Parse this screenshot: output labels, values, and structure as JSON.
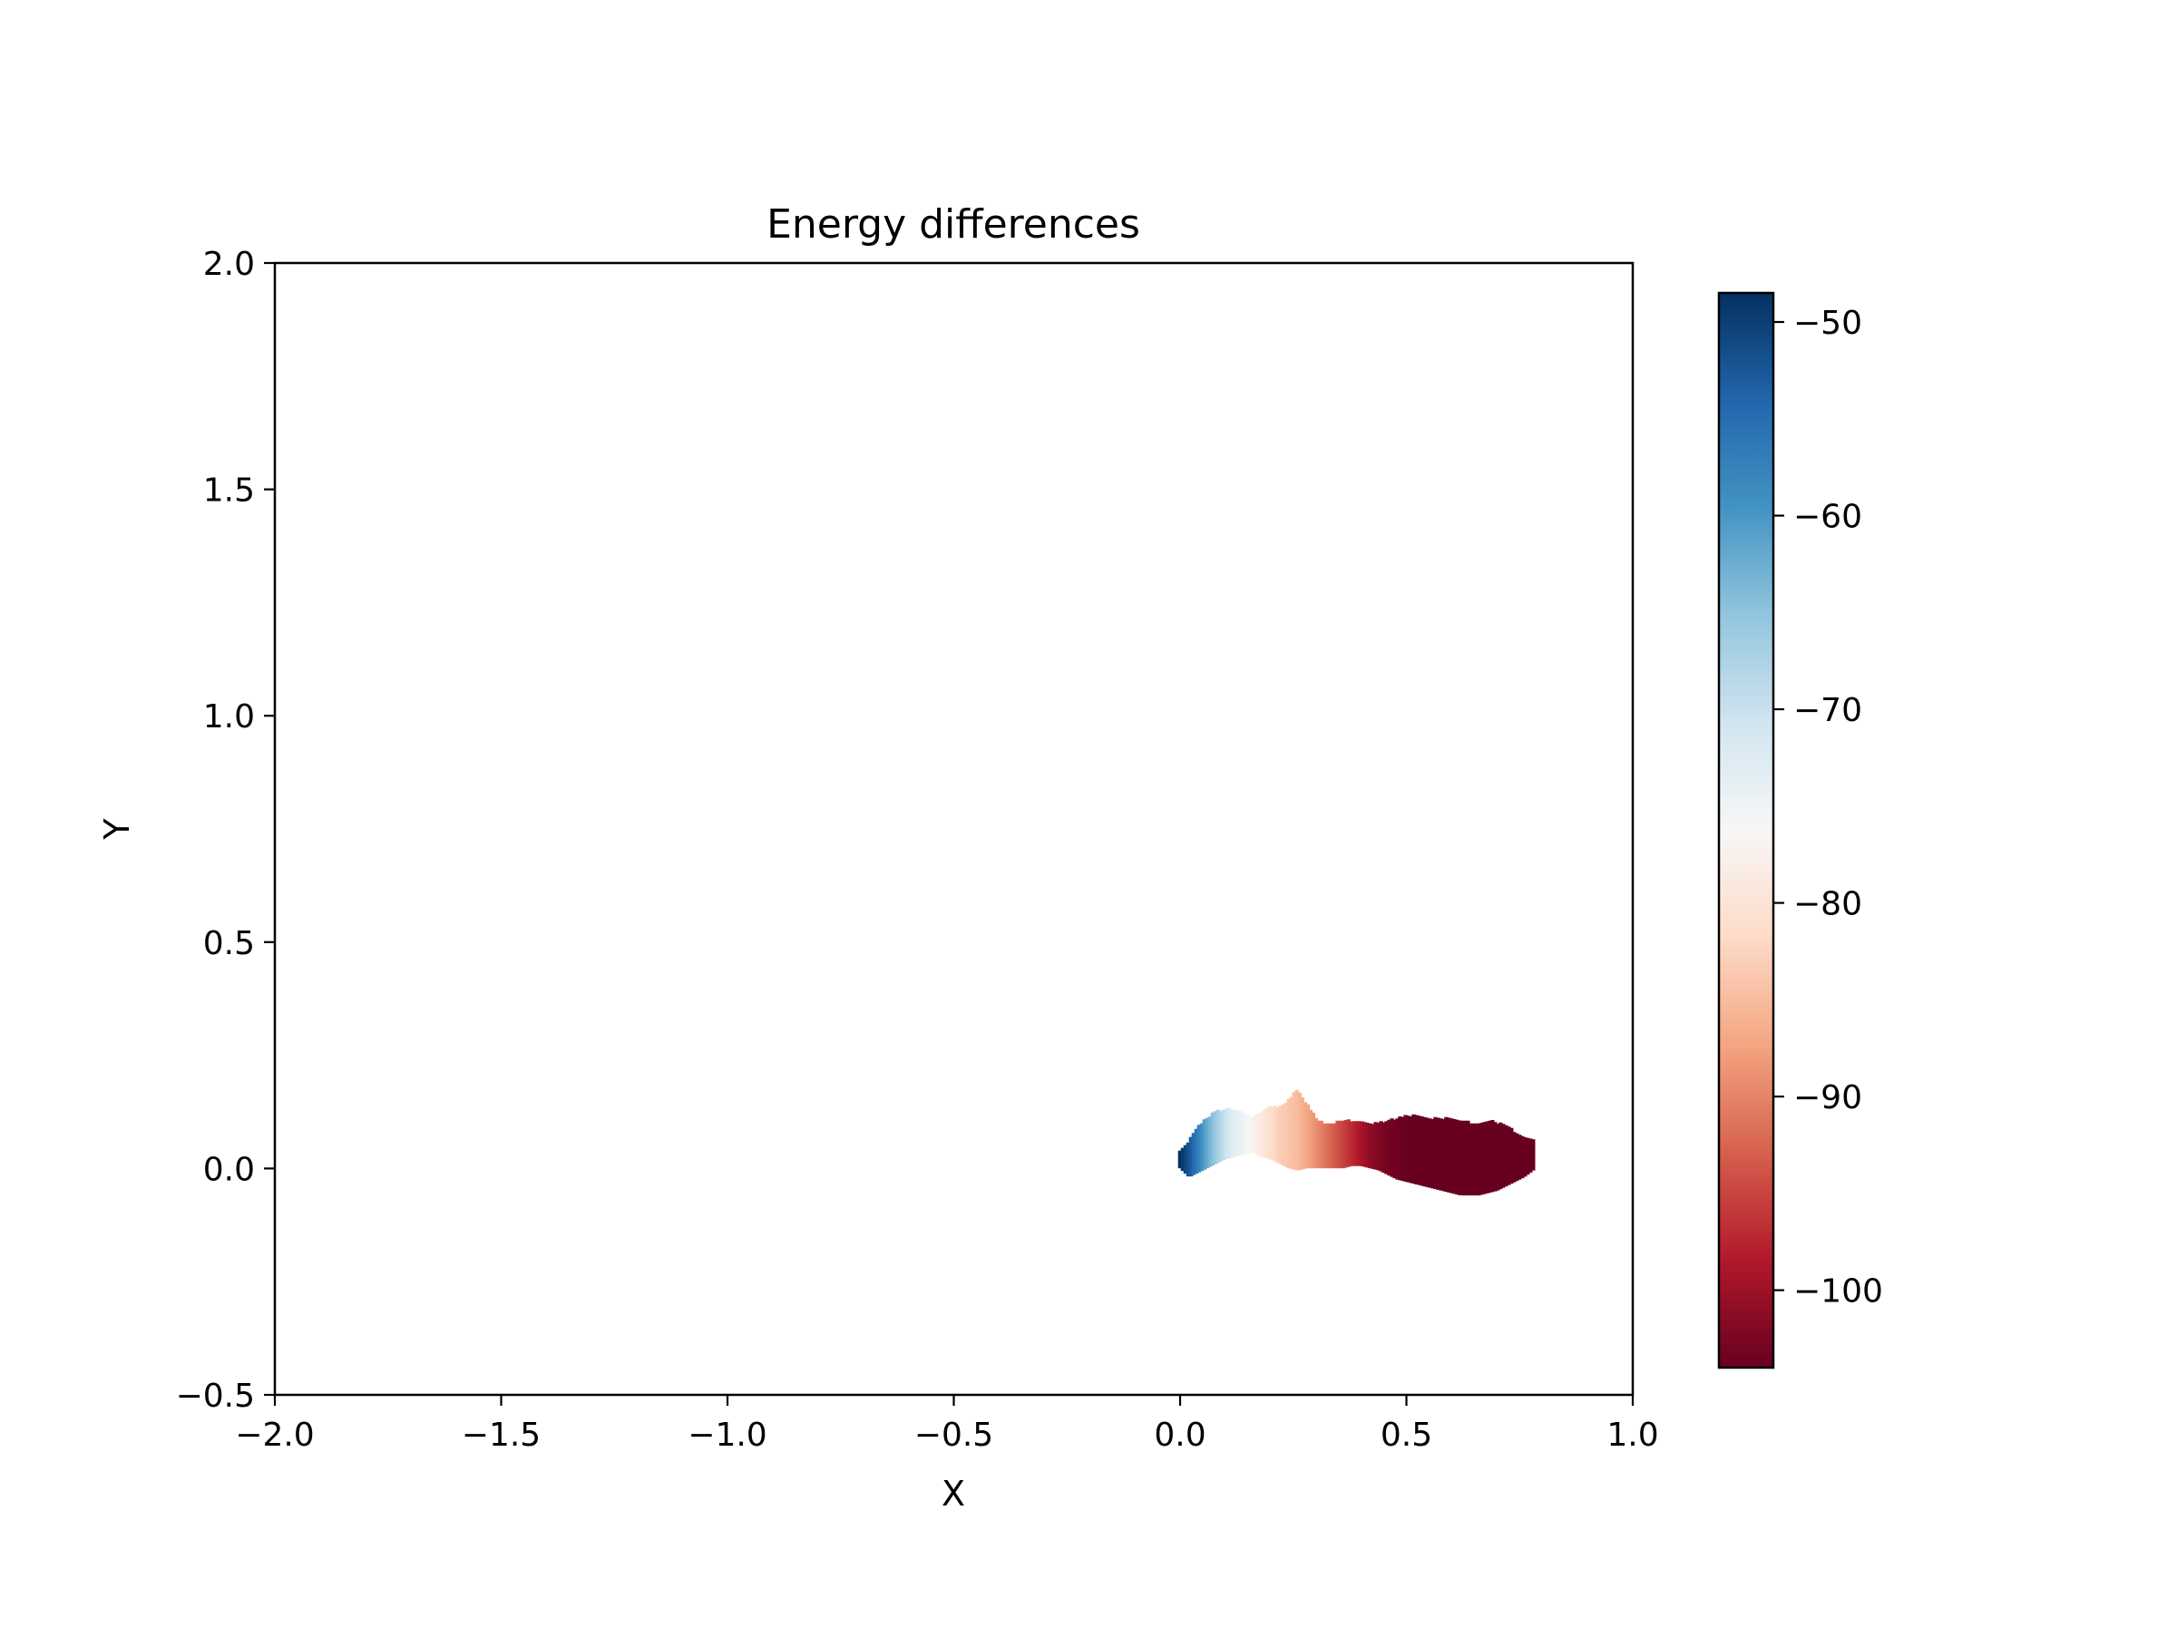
{
  "chart_data": {
    "type": "scatter",
    "title": "Energy differences",
    "xlabel": "X",
    "ylabel": "Y",
    "xlim": [
      -2.0,
      1.0
    ],
    "ylim": [
      -0.5,
      2.0
    ],
    "xticks": [
      -2.0,
      -1.5,
      -1.0,
      -0.5,
      0.0,
      0.5,
      1.0
    ],
    "xtick_labels": [
      "−2.0",
      "−1.5",
      "−1.0",
      "−0.5",
      "0.0",
      "0.5",
      "1.0"
    ],
    "yticks": [
      -0.5,
      0.0,
      0.5,
      1.0,
      1.5,
      2.0
    ],
    "ytick_labels": [
      "−0.5",
      "0.0",
      "0.5",
      "1.0",
      "1.5",
      "2.0"
    ],
    "grid": false,
    "colorbar": {
      "cmap": "RdBu",
      "range": [
        -104,
        -48.5
      ],
      "ticks": [
        -50,
        -60,
        -70,
        -80,
        -90,
        -100
      ],
      "tick_labels": [
        "−50",
        "−60",
        "−70",
        "−80",
        "−90",
        "−100"
      ]
    },
    "cluster_profile": [
      {
        "x": 0.0,
        "ylo": 0.005,
        "yhi": 0.035,
        "value": -48.5
      },
      {
        "x": 0.02,
        "ylo": -0.015,
        "yhi": 0.06,
        "value": -52
      },
      {
        "x": 0.04,
        "ylo": -0.005,
        "yhi": 0.09,
        "value": -57
      },
      {
        "x": 0.06,
        "ylo": 0.005,
        "yhi": 0.11,
        "value": -62
      },
      {
        "x": 0.08,
        "ylo": 0.015,
        "yhi": 0.125,
        "value": -66
      },
      {
        "x": 0.1,
        "ylo": 0.025,
        "yhi": 0.13,
        "value": -70
      },
      {
        "x": 0.12,
        "ylo": 0.03,
        "yhi": 0.13,
        "value": -73
      },
      {
        "x": 0.14,
        "ylo": 0.035,
        "yhi": 0.12,
        "value": -75
      },
      {
        "x": 0.16,
        "ylo": 0.04,
        "yhi": 0.115,
        "value": -77
      },
      {
        "x": 0.18,
        "ylo": 0.03,
        "yhi": 0.125,
        "value": -79
      },
      {
        "x": 0.2,
        "ylo": 0.025,
        "yhi": 0.135,
        "value": -81
      },
      {
        "x": 0.22,
        "ylo": 0.015,
        "yhi": 0.135,
        "value": -83
      },
      {
        "x": 0.24,
        "ylo": 0.005,
        "yhi": 0.15,
        "value": -84
      },
      {
        "x": 0.26,
        "ylo": 0.0,
        "yhi": 0.175,
        "value": -85
      },
      {
        "x": 0.28,
        "ylo": 0.005,
        "yhi": 0.14,
        "value": -87
      },
      {
        "x": 0.3,
        "ylo": 0.005,
        "yhi": 0.11,
        "value": -89
      },
      {
        "x": 0.32,
        "ylo": 0.005,
        "yhi": 0.095,
        "value": -91
      },
      {
        "x": 0.34,
        "ylo": 0.005,
        "yhi": 0.1,
        "value": -93
      },
      {
        "x": 0.36,
        "ylo": 0.005,
        "yhi": 0.105,
        "value": -95
      },
      {
        "x": 0.38,
        "ylo": 0.01,
        "yhi": 0.105,
        "value": -97
      },
      {
        "x": 0.4,
        "ylo": 0.01,
        "yhi": 0.1,
        "value": -99
      },
      {
        "x": 0.42,
        "ylo": 0.005,
        "yhi": 0.095,
        "value": -101
      },
      {
        "x": 0.44,
        "ylo": 0.0,
        "yhi": 0.1,
        "value": -102
      },
      {
        "x": 0.46,
        "ylo": -0.01,
        "yhi": 0.105,
        "value": -103
      },
      {
        "x": 0.48,
        "ylo": -0.02,
        "yhi": 0.11,
        "value": -103.5
      },
      {
        "x": 0.5,
        "ylo": -0.025,
        "yhi": 0.115,
        "value": -104
      },
      {
        "x": 0.52,
        "ylo": -0.03,
        "yhi": 0.115,
        "value": -104
      },
      {
        "x": 0.54,
        "ylo": -0.035,
        "yhi": 0.11,
        "value": -104
      },
      {
        "x": 0.56,
        "ylo": -0.04,
        "yhi": 0.11,
        "value": -104
      },
      {
        "x": 0.58,
        "ylo": -0.045,
        "yhi": 0.11,
        "value": -104
      },
      {
        "x": 0.6,
        "ylo": -0.05,
        "yhi": 0.11,
        "value": -104
      },
      {
        "x": 0.62,
        "ylo": -0.055,
        "yhi": 0.105,
        "value": -104
      },
      {
        "x": 0.64,
        "ylo": -0.055,
        "yhi": 0.1,
        "value": -104
      },
      {
        "x": 0.66,
        "ylo": -0.055,
        "yhi": 0.1,
        "value": -104
      },
      {
        "x": 0.68,
        "ylo": -0.05,
        "yhi": 0.105,
        "value": -104
      },
      {
        "x": 0.7,
        "ylo": -0.045,
        "yhi": 0.1,
        "value": -104
      },
      {
        "x": 0.72,
        "ylo": -0.035,
        "yhi": 0.095,
        "value": -104
      },
      {
        "x": 0.74,
        "ylo": -0.025,
        "yhi": 0.08,
        "value": -104
      },
      {
        "x": 0.76,
        "ylo": -0.015,
        "yhi": 0.07,
        "value": -104
      },
      {
        "x": 0.78,
        "ylo": 0.0,
        "yhi": 0.06,
        "value": -104
      }
    ]
  }
}
